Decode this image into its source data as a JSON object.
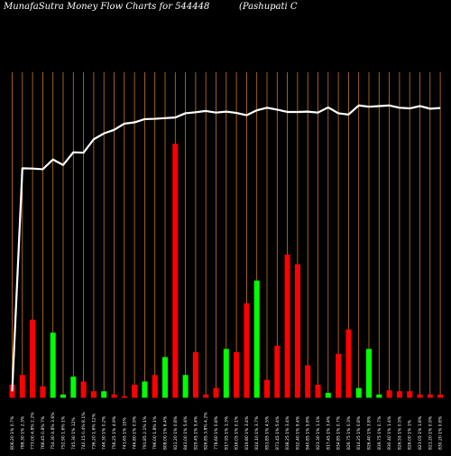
{
  "header": {
    "title": "MunafaSutra  Money Flow  Charts for 544448",
    "company": "(Pashupati   C"
  },
  "colors": {
    "background": "#000000",
    "gridline": "#c87820",
    "up": "#00ff00",
    "down": "#ff0000",
    "line": "#ffffff",
    "text": "#ffffff"
  },
  "chart_data": {
    "type": "bar",
    "title": "MunafaSutra  Money Flow  Charts for 544448",
    "subtitle": "(Pashupati   C",
    "ylim": [
      0,
      100
    ],
    "categories": [
      "806.20 1% 0.7%",
      "788.30 1% 2.3%",
      "773.00 4.8% 2.2%",
      "766.45 0.8% 7%",
      "754.30 4.8% 3.6%",
      "752.90 1.6% 1%",
      "745.30 1% 12%",
      "740.15 0.4% 8.1%",
      "736.20 1.6% 12%",
      "746.30 1% 0.2%",
      "756.25 1% 4.9%",
      "741.65 1% 10%",
      "746.80 1% 0.9%",
      "791.85 2.1% 1%",
      "796.00 1.8% 1%",
      "808.00 1% 6.4%",
      "821.20 1% 0.8%",
      "843.00 1% 5.4%",
      "829.45 1% 5.4%",
      "826.85 3.8% 4.2%",
      "778.60 1% 0.8%",
      "817.95 1% 1.3%",
      "816.05 1% 0.1%",
      "819.80 1% 3.4%",
      "824.10 1% 3.7%",
      "851.85 1% 4.5%",
      "871.45 1% 5.4%",
      "838.25 1% 3.4%",
      "832.40 1% 9.4%",
      "840.85 1% 5.8%",
      "823.30 1% 1.1%",
      "817.45 1% 3.4%",
      "834.85 1% 0.7%",
      "826.75 1% 0.3%",
      "814.25 1% 0.8%",
      "826.40 1% 3.8%",
      "839.75 1% 0.7%",
      "830.40 1% 1.4%",
      "826.55 1% 0.5%",
      "826.00 1% 1%",
      "823.05 1% 1.8%",
      "821.20 1% 0.9%",
      "830.20 1% 0.8%"
    ],
    "series": [
      {
        "values": [
          4,
          7,
          24,
          3.5,
          20,
          1,
          6.5,
          5,
          2,
          2,
          1,
          0.5,
          4,
          5,
          7,
          12.5,
          78,
          7,
          14,
          1,
          3,
          15,
          14,
          29,
          36,
          5.5,
          16,
          44,
          41,
          10,
          4,
          1.5,
          13.5,
          21,
          3,
          15,
          1,
          2.3,
          2,
          2,
          1,
          1,
          1
        ],
        "colors": [
          "down",
          "down",
          "down",
          "down",
          "up",
          "up",
          "up",
          "down",
          "down",
          "up",
          "down",
          "down",
          "down",
          "up",
          "down",
          "up",
          "down",
          "up",
          "down",
          "down",
          "down",
          "up",
          "down",
          "down",
          "up",
          "down",
          "down",
          "down",
          "down",
          "down",
          "down",
          "up",
          "down",
          "down",
          "up",
          "up",
          "up",
          "down",
          "down",
          "down",
          "down",
          "down",
          "down"
        ]
      },
      {
        "type": "line",
        "values": [
          2,
          70.5,
          70.4,
          70.2,
          73.2,
          71.5,
          75.4,
          75.3,
          79.4,
          81.2,
          82.3,
          84.2,
          84.6,
          85.6,
          85.7,
          85.9,
          86.1,
          87.4,
          87.7,
          88.1,
          87.6,
          87.9,
          87.5,
          86.8,
          88.3,
          89.1,
          88.5,
          87.8,
          87.8,
          87.9,
          87.6,
          89.2,
          87.4,
          87,
          89.8,
          89.4,
          89.6,
          89.8,
          89.1,
          88.9,
          89.6,
          88.8,
          89
        ]
      }
    ]
  }
}
